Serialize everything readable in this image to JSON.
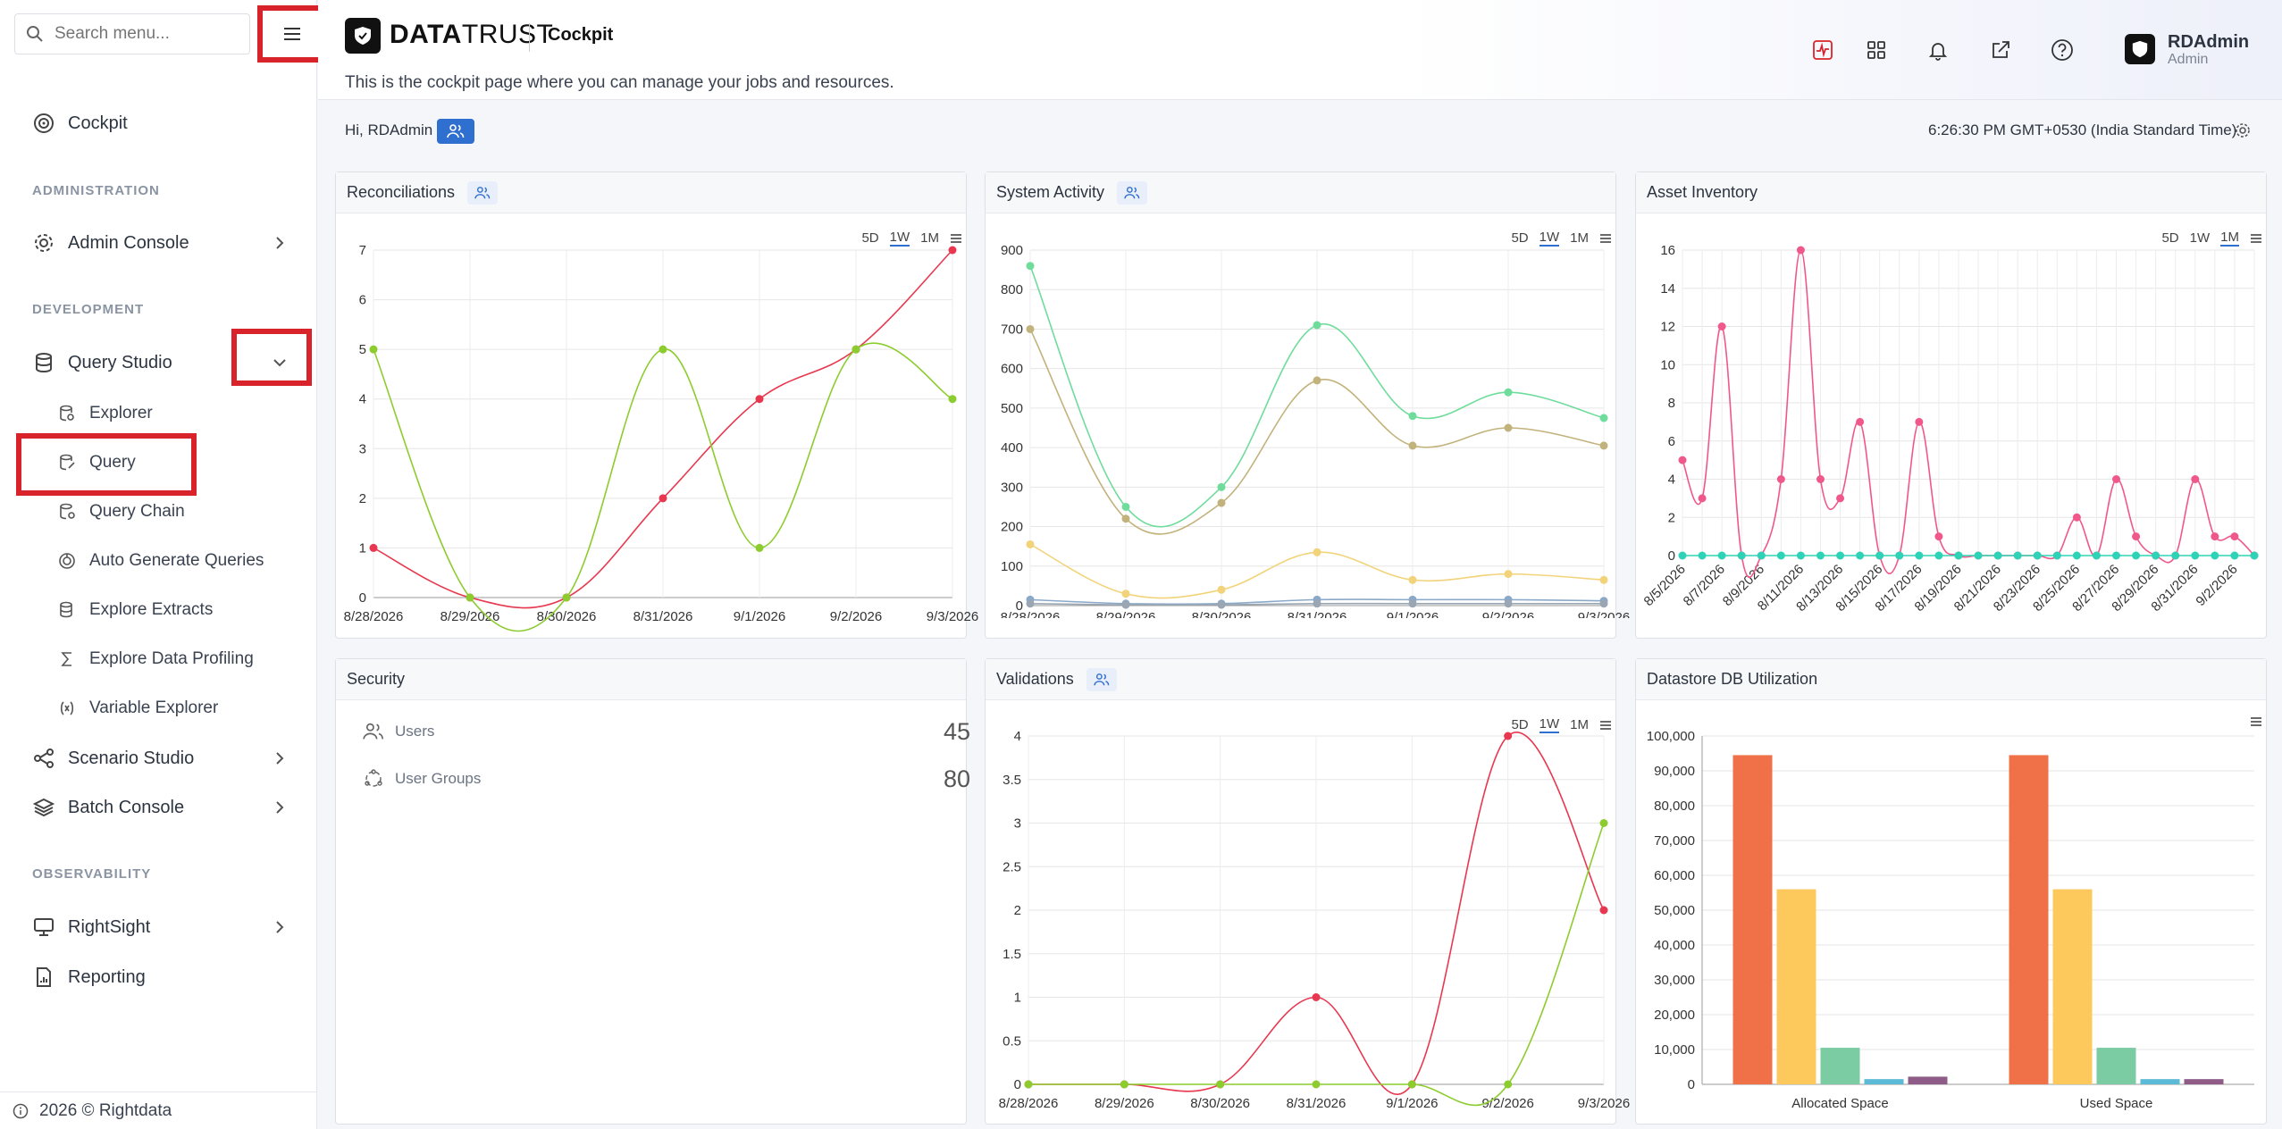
{
  "sidebar": {
    "search_placeholder": "Search menu...",
    "cockpit": "Cockpit",
    "section_admin": "ADMINISTRATION",
    "admin_console": "Admin Console",
    "section_dev": "DEVELOPMENT",
    "query_studio": "Query Studio",
    "sub_items": [
      "Explorer",
      "Query",
      "Query Chain",
      "Auto Generate Queries",
      "Explore Extracts",
      "Explore Data Profiling",
      "Variable Explorer"
    ],
    "scenario_studio": "Scenario Studio",
    "batch_console": "Batch Console",
    "section_obs": "OBSERVABILITY",
    "rightsight": "RightSight",
    "reporting": "Reporting",
    "footer": "2026 © Rightdata"
  },
  "header": {
    "brand_bold": "DATA",
    "brand_rest": "TRUST",
    "page_title": "Cockpit",
    "description": "This is the cockpit page where you can manage your jobs and resources.",
    "user_name": "RDAdmin",
    "user_role": "Admin",
    "accent": "#d9232a"
  },
  "greeting": {
    "text": "Hi, RDAdmin",
    "clock": "6:26:30 PM GMT+0530 (India Standard Time)"
  },
  "zoom": {
    "d5": "5D",
    "w1": "1W",
    "m1": "1M"
  },
  "cards": {
    "reconciliations": "Reconciliations",
    "system_activity": "System Activity",
    "asset_inventory": "Asset Inventory",
    "security": "Security",
    "validations": "Validations",
    "datastore": "Datastore DB Utilization"
  },
  "security": {
    "users_label": "Users",
    "users_count": "45",
    "groups_label": "User Groups",
    "groups_count": "80"
  },
  "chart_data": [
    {
      "id": "reconciliations",
      "type": "line",
      "x": [
        "8/28/2026",
        "8/29/2026",
        "8/30/2026",
        "8/31/2026",
        "9/1/2026",
        "9/2/2026",
        "9/3/2026"
      ],
      "ylim": [
        0,
        7
      ],
      "yticks": [
        "0",
        "1",
        "2",
        "3",
        "4",
        "5",
        "6",
        "7"
      ],
      "series": [
        {
          "color": "#e8384f",
          "values": [
            1,
            0,
            0,
            2,
            4,
            5,
            7
          ]
        },
        {
          "color": "#8ccc2e",
          "values": [
            5,
            0,
            0,
            5,
            1,
            5,
            4
          ]
        }
      ]
    },
    {
      "id": "system_activity",
      "type": "line",
      "x": [
        "8/28/2026",
        "8/29/2026",
        "8/30/2026",
        "8/31/2026",
        "9/1/2026",
        "9/2/2026",
        "9/3/2026"
      ],
      "ylim": [
        0,
        900
      ],
      "yticks": [
        "0",
        "100",
        "200",
        "300",
        "400",
        "500",
        "600",
        "700",
        "800",
        "900"
      ],
      "series": [
        {
          "color": "#6fdc9c",
          "values": [
            860,
            250,
            300,
            710,
            480,
            540,
            475
          ]
        },
        {
          "color": "#c2b27c",
          "values": [
            700,
            220,
            260,
            570,
            405,
            450,
            405
          ]
        },
        {
          "color": "#f2d37a",
          "values": [
            155,
            30,
            40,
            135,
            65,
            80,
            65
          ]
        },
        {
          "color": "#8aa9c9",
          "values": [
            15,
            5,
            5,
            15,
            15,
            15,
            12
          ]
        },
        {
          "color": "#9aa6b2",
          "values": [
            5,
            2,
            2,
            5,
            5,
            5,
            5
          ]
        }
      ]
    },
    {
      "id": "asset_inventory",
      "type": "line",
      "x": [
        "8/5/2026",
        "8/6/2026",
        "8/7/2026",
        "8/8/2026",
        "8/9/2026",
        "8/10/2026",
        "8/11/2026",
        "8/12/2026",
        "8/13/2026",
        "8/14/2026",
        "8/15/2026",
        "8/16/2026",
        "8/17/2026",
        "8/18/2026",
        "8/19/2026",
        "8/20/2026",
        "8/21/2026",
        "8/22/2026",
        "8/23/2026",
        "8/24/2026",
        "8/25/2026",
        "8/26/2026",
        "8/27/2026",
        "8/28/2026",
        "8/29/2026",
        "8/30/2026",
        "8/31/2026",
        "9/1/2026",
        "9/2/2026",
        "9/3/2026"
      ],
      "xlabels": [
        "8/5/2026",
        "8/7/2026",
        "8/9/2026",
        "8/11/2026",
        "8/13/2026",
        "8/15/2026",
        "8/17/2026",
        "8/19/2026",
        "8/21/2026",
        "8/23/2026",
        "8/25/2026",
        "8/27/2026",
        "8/29/2026",
        "8/31/2026",
        "9/2/2026"
      ],
      "ylim": [
        0,
        16
      ],
      "yticks": [
        "0",
        "2",
        "4",
        "6",
        "8",
        "10",
        "12",
        "14",
        "16"
      ],
      "series": [
        {
          "color": "#f0578a",
          "values": [
            5,
            3,
            12,
            0,
            0,
            4,
            16,
            4,
            3,
            7,
            0,
            0,
            7,
            1,
            0,
            0,
            0,
            0,
            0,
            0,
            2,
            0,
            4,
            1,
            0,
            0,
            4,
            1,
            1,
            0
          ]
        },
        {
          "color": "#2ed3b7",
          "values": [
            0,
            0,
            0,
            0,
            0,
            0,
            0,
            0,
            0,
            0,
            0,
            0,
            0,
            0,
            0,
            0,
            0,
            0,
            0,
            0,
            0,
            0,
            0,
            0,
            0,
            0,
            0,
            0,
            0,
            0
          ]
        }
      ]
    },
    {
      "id": "validations",
      "type": "line",
      "x": [
        "8/28/2026",
        "8/29/2026",
        "8/30/2026",
        "8/31/2026",
        "9/1/2026",
        "9/2/2026",
        "9/3/2026"
      ],
      "ylim": [
        0,
        4
      ],
      "yticks": [
        "0",
        "0.5",
        "1",
        "1.5",
        "2",
        "2.5",
        "3",
        "3.5",
        "4"
      ],
      "series": [
        {
          "color": "#e8384f",
          "values": [
            0,
            0,
            0,
            1,
            0,
            4,
            2
          ]
        },
        {
          "color": "#8ccc2e",
          "values": [
            0,
            0,
            0,
            0,
            0,
            0,
            3
          ]
        }
      ]
    },
    {
      "id": "datastore",
      "type": "bar",
      "categories": [
        "Allocated Space",
        "Used Space"
      ],
      "ylim": [
        0,
        100000
      ],
      "yticks": [
        "0",
        "10,000",
        "20,000",
        "30,000",
        "40,000",
        "50,000",
        "60,000",
        "70,000",
        "80,000",
        "90,000",
        "100,000"
      ],
      "series": [
        {
          "color": "#f07048",
          "values": [
            94500,
            94500
          ]
        },
        {
          "color": "#fdc95c",
          "values": [
            56000,
            56000
          ]
        },
        {
          "color": "#7bcba3",
          "values": [
            10500,
            10500
          ]
        },
        {
          "color": "#5bbad5",
          "values": [
            1500,
            1500
          ]
        },
        {
          "color": "#8e5c86",
          "values": [
            2200,
            1500
          ]
        }
      ]
    }
  ]
}
